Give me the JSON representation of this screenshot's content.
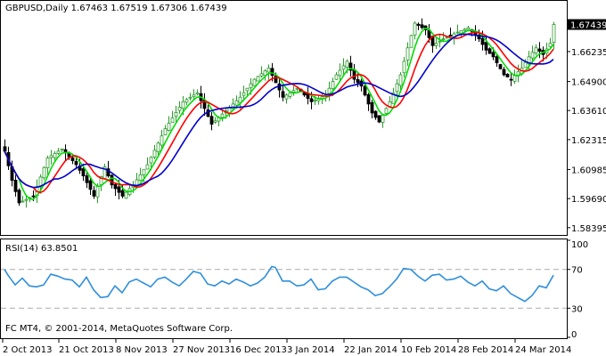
{
  "header": {
    "symbol_line": "GBPUSD,Daily  1.67463 1.67519 1.67306 1.67439"
  },
  "footer": {
    "copyright": "FC MT4, © 2001-2014, MetaQuotes Software Corp."
  },
  "colors": {
    "background": "#ffffff",
    "frame": "#000000",
    "bull_candle": "#2e9a2e",
    "bear_candle": "#000000",
    "ma_fast": "#00dd00",
    "ma_mid": "#ff0000",
    "ma_slow": "#0000cc",
    "rsi": "#2f8fdc",
    "level_line": "#aaaaaa",
    "price_tag_bg": "#000000"
  },
  "chart_data": [
    {
      "type": "candlestick",
      "title": "GBPUSD,Daily",
      "ylim": [
        1.5815,
        1.6845
      ],
      "y_ticks": [
        "1.66235",
        "1.64900",
        "1.63610",
        "1.62315",
        "1.60985",
        "1.59690",
        "1.58395"
      ],
      "x_ticks": [
        "2 Oct 2013",
        "21 Oct 2013",
        "8 Nov 2013",
        "27 Nov 2013",
        "16 Dec 2013",
        "3 Jan 2014",
        "22 Jan 2014",
        "10 Feb 2014",
        "28 Feb 2014",
        "24 Mar 2014"
      ],
      "last_price": "1.67439",
      "anchors": [
        [
          0,
          1.618
        ],
        [
          2,
          1.605
        ],
        [
          4,
          1.595
        ],
        [
          8,
          1.598
        ],
        [
          12,
          1.615
        ],
        [
          16,
          1.619
        ],
        [
          20,
          1.612
        ],
        [
          22,
          1.607
        ],
        [
          25,
          1.598
        ],
        [
          28,
          1.611
        ],
        [
          30,
          1.603
        ],
        [
          33,
          1.598
        ],
        [
          36,
          1.603
        ],
        [
          40,
          1.612
        ],
        [
          45,
          1.628
        ],
        [
          50,
          1.64
        ],
        [
          54,
          1.644
        ],
        [
          58,
          1.63
        ],
        [
          62,
          1.636
        ],
        [
          66,
          1.642
        ],
        [
          70,
          1.65
        ],
        [
          74,
          1.655
        ],
        [
          78,
          1.642
        ],
        [
          82,
          1.646
        ],
        [
          86,
          1.64
        ],
        [
          90,
          1.643
        ],
        [
          93,
          1.652
        ],
        [
          96,
          1.658
        ],
        [
          98,
          1.65
        ],
        [
          100,
          1.647
        ],
        [
          103,
          1.635
        ],
        [
          105,
          1.631
        ],
        [
          108,
          1.64
        ],
        [
          111,
          1.652
        ],
        [
          113,
          1.664
        ],
        [
          115,
          1.675
        ],
        [
          118,
          1.672
        ],
        [
          120,
          1.665
        ],
        [
          123,
          1.668
        ],
        [
          127,
          1.671
        ],
        [
          130,
          1.673
        ],
        [
          133,
          1.668
        ],
        [
          135,
          1.663
        ],
        [
          137,
          1.66
        ],
        [
          140,
          1.652
        ],
        [
          142,
          1.65
        ],
        [
          145,
          1.655
        ],
        [
          147,
          1.66
        ],
        [
          149,
          1.664
        ],
        [
          151,
          1.661
        ],
        [
          153,
          1.666
        ],
        [
          154,
          1.674
        ]
      ],
      "series": [
        {
          "name": "",
          "kind": "ma",
          "window": 5,
          "color_key": "ma_fast"
        },
        {
          "name": "",
          "kind": "ma",
          "window": 9,
          "color_key": "ma_mid"
        },
        {
          "name": "",
          "kind": "ma",
          "window": 15,
          "color_key": "ma_slow"
        }
      ]
    },
    {
      "type": "line",
      "title": "RSI(14) 63.8501",
      "ylim": [
        0,
        100
      ],
      "y_ticks": [
        "100",
        "70",
        "30",
        "0"
      ],
      "levels": [
        70,
        30
      ],
      "anchors": [
        [
          0,
          70
        ],
        [
          1,
          64
        ],
        [
          3,
          54
        ],
        [
          5,
          61
        ],
        [
          7,
          53
        ],
        [
          9,
          52
        ],
        [
          11,
          54
        ],
        [
          13,
          65
        ],
        [
          15,
          63
        ],
        [
          17,
          60
        ],
        [
          19,
          59
        ],
        [
          21,
          52
        ],
        [
          23,
          62
        ],
        [
          25,
          49
        ],
        [
          27,
          41
        ],
        [
          29,
          42
        ],
        [
          31,
          53
        ],
        [
          33,
          46
        ],
        [
          35,
          57
        ],
        [
          37,
          60
        ],
        [
          39,
          56
        ],
        [
          41,
          52
        ],
        [
          43,
          60
        ],
        [
          45,
          62
        ],
        [
          47,
          57
        ],
        [
          49,
          53
        ],
        [
          51,
          60
        ],
        [
          53,
          68
        ],
        [
          55,
          66
        ],
        [
          57,
          55
        ],
        [
          59,
          53
        ],
        [
          61,
          58
        ],
        [
          63,
          55
        ],
        [
          65,
          60
        ],
        [
          67,
          57
        ],
        [
          69,
          53
        ],
        [
          71,
          56
        ],
        [
          73,
          62
        ],
        [
          75,
          73
        ],
        [
          76,
          72
        ],
        [
          78,
          58
        ],
        [
          80,
          58
        ],
        [
          82,
          53
        ],
        [
          84,
          54
        ],
        [
          86,
          60
        ],
        [
          88,
          49
        ],
        [
          90,
          50
        ],
        [
          92,
          58
        ],
        [
          94,
          62
        ],
        [
          96,
          62
        ],
        [
          98,
          57
        ],
        [
          100,
          52
        ],
        [
          102,
          49
        ],
        [
          104,
          43
        ],
        [
          106,
          45
        ],
        [
          108,
          52
        ],
        [
          110,
          60
        ],
        [
          112,
          71
        ],
        [
          114,
          70
        ],
        [
          116,
          63
        ],
        [
          118,
          58
        ],
        [
          120,
          64
        ],
        [
          122,
          65
        ],
        [
          124,
          59
        ],
        [
          126,
          60
        ],
        [
          128,
          63
        ],
        [
          130,
          57
        ],
        [
          132,
          53
        ],
        [
          134,
          58
        ],
        [
          136,
          50
        ],
        [
          138,
          48
        ],
        [
          140,
          53
        ],
        [
          142,
          45
        ],
        [
          144,
          41
        ],
        [
          146,
          37
        ],
        [
          148,
          43
        ],
        [
          150,
          53
        ],
        [
          152,
          51
        ],
        [
          154,
          64
        ]
      ]
    }
  ]
}
